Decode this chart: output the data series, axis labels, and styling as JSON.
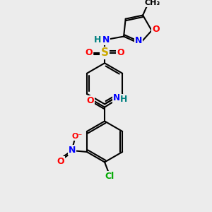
{
  "bg_color": "#ececec",
  "atom_colors": {
    "C": "#000000",
    "N": "#0000ff",
    "O": "#ff0000",
    "S": "#ccaa00",
    "H": "#008080",
    "Cl": "#00aa00"
  },
  "bond_color": "#000000",
  "lw": 1.5,
  "fs": 9,
  "fs_small": 8,
  "layout": {
    "scale": 1.0
  }
}
